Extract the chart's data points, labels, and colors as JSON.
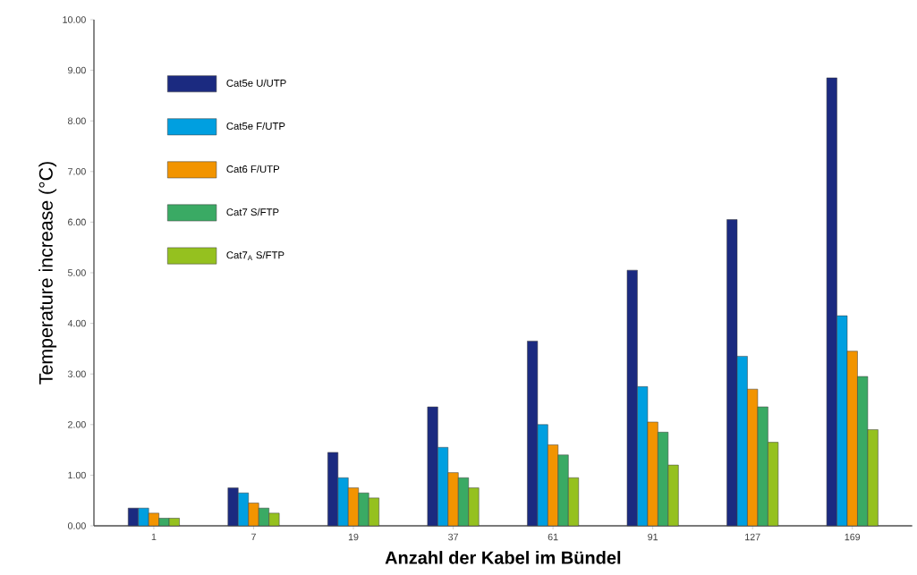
{
  "chart_data": {
    "type": "bar",
    "xlabel": "Anzahl der Kabel im Bündel",
    "ylabel": "Temperature increase (°C)",
    "categories": [
      "1",
      "7",
      "19",
      "37",
      "61",
      "91",
      "127",
      "169"
    ],
    "series": [
      {
        "name": "Cat5e U/UTP",
        "color": "#1b2a80",
        "values": [
          0.35,
          0.75,
          1.45,
          2.35,
          3.65,
          5.05,
          6.05,
          8.85
        ]
      },
      {
        "name": "Cat5e F/UTP",
        "color": "#009fe0",
        "values": [
          0.35,
          0.65,
          0.95,
          1.55,
          2.0,
          2.75,
          3.35,
          4.15
        ]
      },
      {
        "name": "Cat6 F/UTP",
        "color": "#f29400",
        "values": [
          0.25,
          0.45,
          0.75,
          1.05,
          1.6,
          2.05,
          2.7,
          3.45
        ]
      },
      {
        "name": "Cat7 S/FTP",
        "color": "#3aaa64",
        "values": [
          0.15,
          0.35,
          0.65,
          0.95,
          1.4,
          1.85,
          2.35,
          2.95
        ]
      },
      {
        "name": "Cat7$_{A}$ S/FTP",
        "color": "#95c11f",
        "values": [
          0.15,
          0.25,
          0.55,
          0.75,
          0.95,
          1.2,
          1.65,
          1.9
        ]
      }
    ],
    "ylim": [
      0,
      10
    ],
    "yticks": [
      {
        "value": 0,
        "label": "0.00"
      },
      {
        "value": 1,
        "label": "1.00"
      },
      {
        "value": 2,
        "label": "2.00"
      },
      {
        "value": 3,
        "label": "3.00"
      },
      {
        "value": 4,
        "label": "4.00"
      },
      {
        "value": 5,
        "label": "5.00"
      },
      {
        "value": 6,
        "label": "6.00"
      },
      {
        "value": 7,
        "label": "7.00"
      },
      {
        "value": 8,
        "label": "8.00"
      },
      {
        "value": 9,
        "label": "9.00"
      },
      {
        "value": 10,
        "label": "10.00"
      }
    ],
    "grid": false,
    "legend": "top left"
  }
}
